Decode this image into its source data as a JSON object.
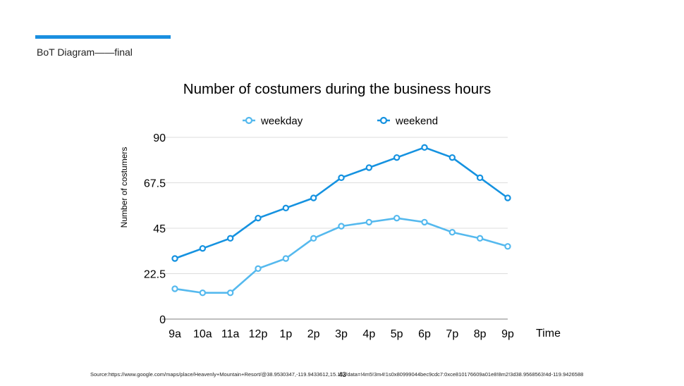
{
  "slide": {
    "subtitle": "BoT Diagram——final",
    "source": "Source:https://www.google.com/maps/place/Heavenly+Mountain+Resort/@38.9530347,-119.9433612,15.16z/data=!4m5!3m4!1s0x80999044bec9cdc7:0xce810176609a01e8!8m2!3d38.9568563!4d-119.9426588",
    "page_number": "43"
  },
  "colors": {
    "accent": "#1a8fe0",
    "weekday": "#55b9ee",
    "weekend": "#1592e0",
    "grid": "#dddddd"
  },
  "chart_data": {
    "type": "line",
    "title": "Number of costumers during the business hours",
    "xlabel": "Time",
    "ylabel": "Number of costumers",
    "categories": [
      "9a",
      "10a",
      "11a",
      "12p",
      "1p",
      "2p",
      "3p",
      "4p",
      "5p",
      "6p",
      "7p",
      "8p",
      "9p"
    ],
    "ylim": [
      0,
      90
    ],
    "yticks": [
      "0",
      "22.5",
      "45",
      "67.5",
      "90"
    ],
    "grid": true,
    "legend": "top",
    "series": [
      {
        "name": "weekday",
        "values": [
          15,
          13,
          13,
          25,
          30,
          40,
          46,
          48,
          50,
          48,
          43,
          40,
          36
        ]
      },
      {
        "name": "weekend",
        "values": [
          30,
          35,
          40,
          50,
          55,
          60,
          70,
          75,
          80,
          85,
          80,
          70,
          60
        ]
      }
    ]
  }
}
